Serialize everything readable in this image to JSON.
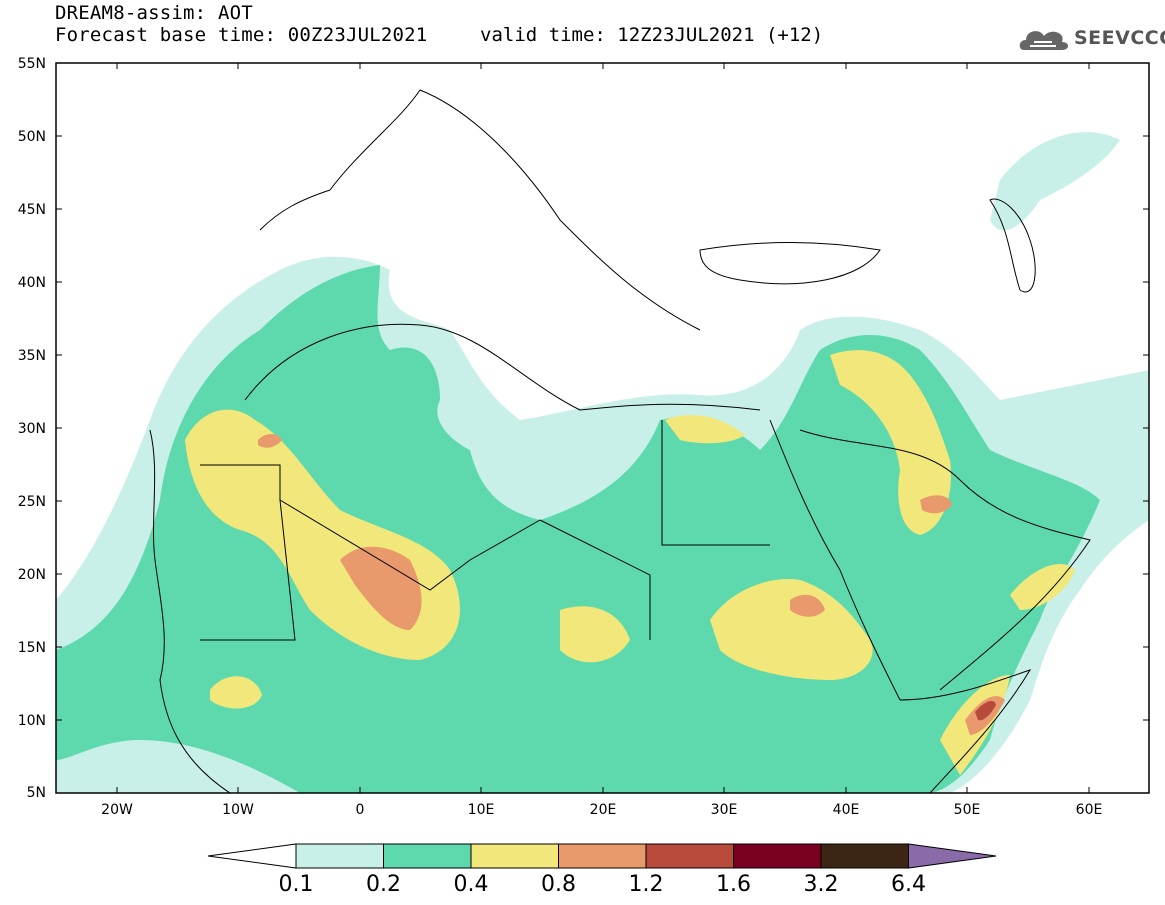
{
  "header": {
    "title": "DREAM8-assim: AOT",
    "forecast_base": "Forecast base time: 00Z23JUL2021",
    "valid_time": "valid time: 12Z23JUL2021 (+12)"
  },
  "logo": {
    "text": "SEEVCCC",
    "icon": "cloud-icon"
  },
  "map": {
    "lat_labels": [
      "55N",
      "50N",
      "45N",
      "40N",
      "35N",
      "30N",
      "25N",
      "20N",
      "15N",
      "10N",
      "5N"
    ],
    "lon_labels": [
      "20W",
      "10W",
      "0",
      "10E",
      "20E",
      "30E",
      "40E",
      "50E",
      "60E"
    ]
  },
  "colorbar": {
    "levels": [
      "0.1",
      "0.2",
      "0.4",
      "0.8",
      "1.2",
      "1.6",
      "3.2",
      "6.4"
    ],
    "colors": [
      "#c8f0e8",
      "#5ed9ae",
      "#f2e77a",
      "#e89a6c",
      "#b84a3c",
      "#7a0020",
      "#3c2514",
      "#8a6aa8"
    ]
  }
}
